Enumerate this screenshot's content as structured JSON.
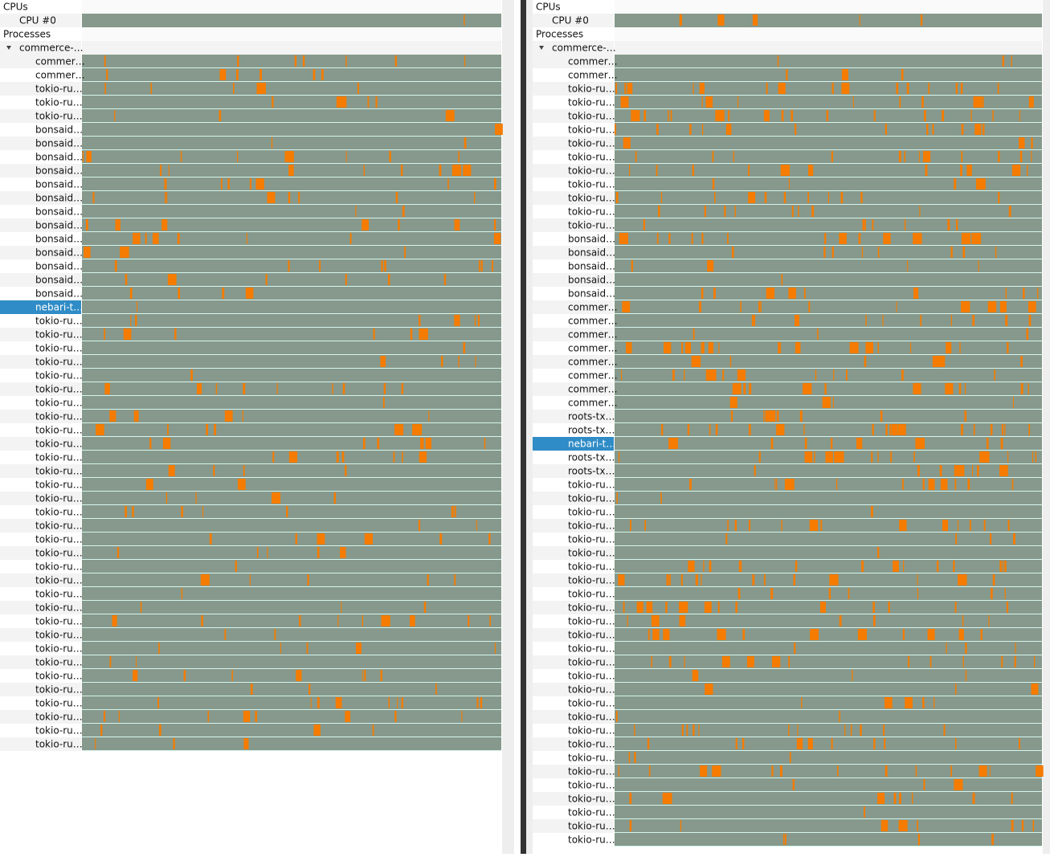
{
  "panes": [
    {
      "cpus_label": "CPUs",
      "cpu_label": "CPU #0",
      "processes_label": "Processes",
      "process_label": "commerce-…",
      "selected_row": 18,
      "rows": [
        "commer…",
        "commer…",
        "tokio-ru…",
        "tokio-ru…",
        "tokio-ru…",
        "bonsaid…",
        "bonsaid…",
        "bonsaid…",
        "bonsaid…",
        "bonsaid…",
        "bonsaid…",
        "bonsaid…",
        "bonsaid…",
        "bonsaid…",
        "bonsaid…",
        "bonsaid…",
        "bonsaid…",
        "bonsaid…",
        "nebari-t…",
        "tokio-ru…",
        "tokio-ru…",
        "tokio-ru…",
        "tokio-ru…",
        "tokio-ru…",
        "tokio-ru…",
        "tokio-ru…",
        "tokio-ru…",
        "tokio-ru…",
        "tokio-ru…",
        "tokio-ru…",
        "tokio-ru…",
        "tokio-ru…",
        "tokio-ru…",
        "tokio-ru…",
        "tokio-ru…",
        "tokio-ru…",
        "tokio-ru…",
        "tokio-ru…",
        "tokio-ru…",
        "tokio-ru…",
        "tokio-ru…",
        "tokio-ru…",
        "tokio-ru…",
        "tokio-ru…",
        "tokio-ru…",
        "tokio-ru…",
        "tokio-ru…",
        "tokio-ru…",
        "tokio-ru…",
        "tokio-ru…",
        "tokio-ru…"
      ]
    },
    {
      "cpus_label": "CPUs",
      "cpu_label": "CPU #0",
      "processes_label": "Processes",
      "process_label": "commerce-…",
      "selected_row": 28,
      "rows": [
        "commer…",
        "commer…",
        "tokio-ru…",
        "tokio-ru…",
        "tokio-ru…",
        "tokio-ru…",
        "tokio-ru…",
        "tokio-ru…",
        "tokio-ru…",
        "tokio-ru…",
        "tokio-ru…",
        "tokio-ru…",
        "tokio-ru…",
        "bonsaid…",
        "bonsaid…",
        "bonsaid…",
        "bonsaid…",
        "bonsaid…",
        "commer…",
        "commer…",
        "commer…",
        "commer…",
        "commer…",
        "commer…",
        "commer…",
        "commer…",
        "roots-tx…",
        "roots-tx…",
        "nebari-t…",
        "roots-tx…",
        "roots-tx…",
        "tokio-ru…",
        "tokio-ru…",
        "tokio-ru…",
        "tokio-ru…",
        "tokio-ru…",
        "tokio-ru…",
        "tokio-ru…",
        "tokio-ru…",
        "tokio-ru…",
        "tokio-ru…",
        "tokio-ru…",
        "tokio-ru…",
        "tokio-ru…",
        "tokio-ru…",
        "tokio-ru…",
        "tokio-ru…",
        "tokio-ru…",
        "tokio-ru…",
        "tokio-ru…",
        "tokio-ru…",
        "tokio-ru…",
        "tokio-ru…",
        "tokio-ru…",
        "tokio-ru…",
        "tokio-ru…",
        "tokio-ru…",
        "tokio-ru…"
      ]
    }
  ]
}
